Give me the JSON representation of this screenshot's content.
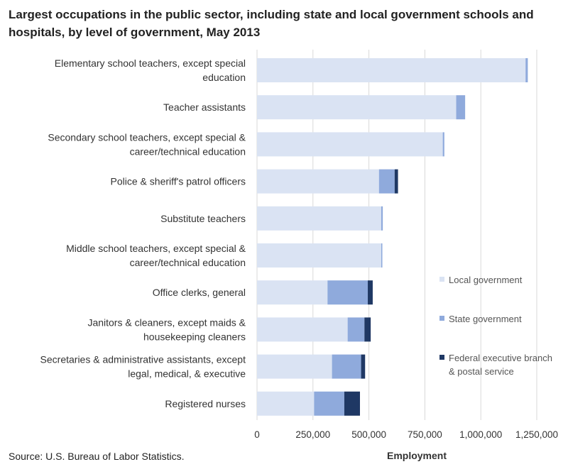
{
  "title": "Largest occupations in the public sector, including state and local government schools and hospitals, by level of government, May 2013",
  "source": "Source: U.S. Bureau of Labor Statistics.",
  "chart_data": {
    "type": "bar",
    "orientation": "horizontal",
    "stacked": true,
    "categories": [
      [
        "Elementary school teachers, except special",
        "education"
      ],
      [
        "Teacher assistants"
      ],
      [
        "Secondary school teachers, except special &",
        "career/technical education"
      ],
      [
        "Police & sheriff's patrol officers"
      ],
      [
        "Substitute teachers"
      ],
      [
        "Middle school teachers, except special &",
        "career/technical education"
      ],
      [
        "Office clerks, general"
      ],
      [
        "Janitors & cleaners, except maids &",
        "housekeeping cleaners"
      ],
      [
        "Secretaries & administrative assistants, except",
        "legal, medical, & executive"
      ],
      [
        "Registered nurses"
      ]
    ],
    "series": [
      {
        "name": [
          "Local government"
        ],
        "color": "#dae3f3",
        "values": [
          1200000,
          890000,
          830000,
          545000,
          555000,
          555000,
          315000,
          405000,
          335000,
          255000
        ]
      },
      {
        "name": [
          "State government"
        ],
        "color": "#8faadc",
        "values": [
          10000,
          40000,
          7000,
          70000,
          7000,
          5000,
          180000,
          75000,
          130000,
          135000
        ]
      },
      {
        "name": [
          "Federal executive branch",
          "& postal service"
        ],
        "color": "#1f3864",
        "values": [
          0,
          0,
          0,
          15000,
          0,
          0,
          22000,
          28000,
          18000,
          70000
        ]
      }
    ],
    "xlabel": "Employment",
    "xlim": [
      0,
      1250000
    ],
    "xticks": [
      0,
      250000,
      500000,
      750000,
      1000000,
      1250000
    ],
    "xtick_labels": [
      "0",
      "250,000",
      "500,000",
      "750,000",
      "1,000,000",
      "1,250,000"
    ],
    "grid": true,
    "legend_position": "right"
  }
}
